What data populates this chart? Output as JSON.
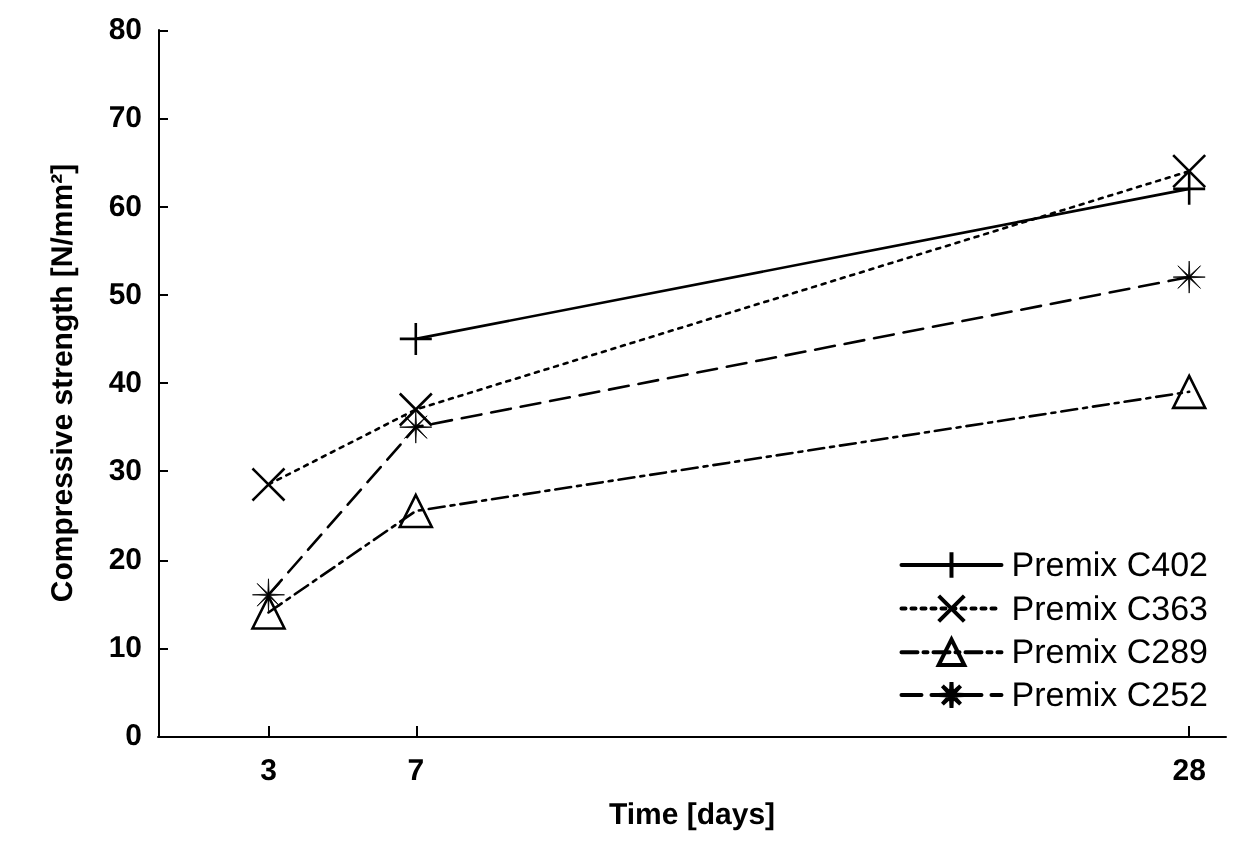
{
  "chart_data": {
    "type": "line",
    "xlabel": "Time [days]",
    "ylabel": "Compressive strength [N/mm²]",
    "xlim": [
      0,
      29
    ],
    "xticks": [
      3,
      7,
      28
    ],
    "ylim": [
      0,
      80
    ],
    "yticks": [
      0,
      10,
      20,
      30,
      40,
      50,
      60,
      70,
      80
    ],
    "grid": false,
    "legend": "bottom right",
    "series": [
      {
        "name": "Premix C402",
        "color": "#000000",
        "x": [
          7,
          28
        ],
        "values": [
          45,
          62
        ],
        "marker": "cross",
        "line_style": "solid"
      },
      {
        "name": "Premix C363",
        "color": "#000000",
        "x": [
          3,
          7,
          28
        ],
        "values": [
          28.5,
          37,
          64
        ],
        "marker": "x",
        "line_style": "dotted"
      },
      {
        "name": "Premix C289",
        "color": "#000000",
        "x": [
          3,
          7,
          28
        ],
        "values": [
          14,
          25.5,
          39
        ],
        "marker": "triangle",
        "line_style": "dashdot"
      },
      {
        "name": "Premix C252",
        "color": "#000000",
        "x": [
          3,
          7,
          28
        ],
        "values": [
          16,
          35,
          52
        ],
        "marker": "star",
        "line_style": "dashed"
      }
    ]
  }
}
